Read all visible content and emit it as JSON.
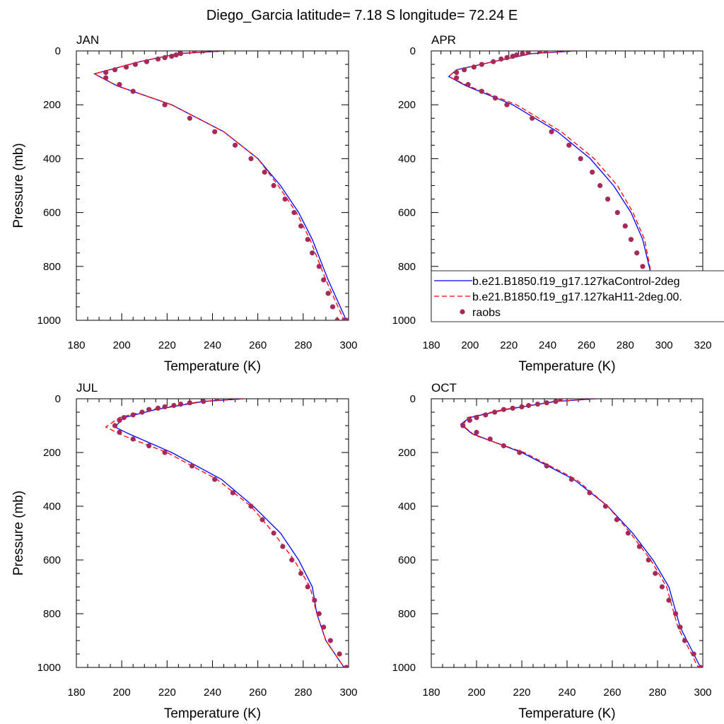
{
  "figure": {
    "title": "Diego_Garcia  latitude= 7.18 S longitude= 72.24 E"
  },
  "legend": {
    "location": "lower-right of APR panel",
    "entries": [
      {
        "label": "b.e21.B1850.f19_g17.127kaControl-2deg",
        "style": "solid",
        "color": "#0000ff"
      },
      {
        "label": "b.e21.B1850.f19_g17.127kaH11-2deg.00.",
        "style": "dashed",
        "color": "#ff0000"
      },
      {
        "label": "raobs",
        "style": "dot",
        "color": "#a52a5a"
      }
    ]
  },
  "colors": {
    "control": "#0000ff",
    "h11": "#ff0000",
    "raobs": "#a52a5a"
  },
  "chart_data": [
    {
      "type": "line",
      "title": "JAN",
      "xlabel": "Temperature (K)",
      "ylabel": "Pressure (mb)",
      "xlim": [
        180,
        300
      ],
      "ylim": [
        1000,
        0
      ],
      "xticks": [
        180,
        200,
        220,
        240,
        260,
        280,
        300
      ],
      "yticks": [
        0,
        200,
        400,
        600,
        800,
        1000
      ],
      "series": [
        {
          "key": "control",
          "x": [
            246,
            225,
            208,
            188,
            198,
            222,
            245,
            260,
            270,
            278,
            284,
            291,
            299
          ],
          "y": [
            0,
            10,
            40,
            85,
            130,
            200,
            300,
            400,
            500,
            600,
            700,
            850,
            1000
          ]
        },
        {
          "key": "h11",
          "x": [
            245,
            225,
            208,
            188,
            198,
            222,
            245,
            260,
            269,
            277,
            283,
            290,
            298
          ],
          "y": [
            0,
            10,
            40,
            85,
            130,
            200,
            300,
            400,
            500,
            600,
            700,
            850,
            1000
          ]
        },
        {
          "key": "raobs",
          "x": [
            236,
            232,
            226,
            224,
            222,
            219,
            216,
            211,
            206,
            202,
            197,
            193,
            193,
            199,
            205,
            219,
            230,
            241,
            250,
            257,
            263,
            267,
            272,
            276,
            279,
            282,
            284,
            287,
            289,
            291,
            293,
            295,
            298,
            299
          ],
          "y": [
            0,
            0,
            10,
            15,
            20,
            25,
            30,
            40,
            50,
            60,
            70,
            80,
            100,
            125,
            150,
            200,
            250,
            300,
            350,
            400,
            450,
            500,
            550,
            600,
            650,
            700,
            750,
            800,
            850,
            900,
            950,
            1000,
            1000,
            1000
          ]
        }
      ]
    },
    {
      "type": "line",
      "title": "APR",
      "xlabel": "Temperature (K)",
      "ylabel": "",
      "xlim": [
        180,
        320
      ],
      "ylim": [
        1000,
        0
      ],
      "xticks": [
        180,
        200,
        220,
        240,
        260,
        280,
        300,
        320
      ],
      "yticks": [
        0,
        200,
        400,
        600,
        800,
        1000
      ],
      "series": [
        {
          "key": "control",
          "x": [
            255,
            232,
            212,
            193,
            189,
            198,
            222,
            245,
            262,
            274,
            283,
            289,
            294,
            300
          ],
          "y": [
            0,
            10,
            40,
            70,
            95,
            130,
            200,
            300,
            400,
            500,
            600,
            700,
            850,
            1000
          ]
        },
        {
          "key": "h11",
          "x": [
            254,
            231,
            212,
            193,
            189,
            199,
            224,
            247,
            264,
            276,
            284,
            290,
            294,
            299
          ],
          "y": [
            0,
            10,
            40,
            70,
            95,
            130,
            200,
            300,
            400,
            500,
            600,
            700,
            850,
            1000
          ]
        },
        {
          "key": "raobs",
          "x": [
            239,
            236,
            230,
            227,
            224,
            222,
            219,
            216,
            212,
            206,
            202,
            197,
            193,
            193,
            199,
            206,
            213,
            219,
            232,
            242,
            251,
            257,
            263,
            267,
            271,
            276,
            280,
            283,
            286,
            289,
            291,
            293,
            296,
            300
          ],
          "y": [
            0,
            0,
            5,
            10,
            15,
            20,
            25,
            30,
            40,
            50,
            60,
            70,
            80,
            100,
            125,
            150,
            175,
            200,
            250,
            300,
            350,
            400,
            450,
            500,
            550,
            600,
            650,
            700,
            750,
            800,
            850,
            900,
            950,
            1000
          ]
        }
      ]
    },
    {
      "type": "line",
      "title": "JUL",
      "xlabel": "Temperature (K)",
      "ylabel": "Pressure (mb)",
      "xlim": [
        180,
        300
      ],
      "ylim": [
        1000,
        0
      ],
      "xticks": [
        180,
        200,
        220,
        240,
        260,
        280,
        300
      ],
      "yticks": [
        0,
        200,
        400,
        600,
        800,
        1000
      ],
      "series": [
        {
          "key": "control",
          "x": [
            254,
            236,
            215,
            201,
            197,
            203,
            222,
            244,
            258,
            270,
            278,
            284,
            286,
            290,
            298
          ],
          "y": [
            0,
            10,
            40,
            70,
            105,
            130,
            200,
            300,
            400,
            500,
            600,
            700,
            800,
            900,
            1000
          ]
        },
        {
          "key": "h11",
          "x": [
            254,
            235,
            213,
            199,
            193,
            200,
            220,
            242,
            257,
            267,
            276,
            283,
            286,
            290,
            298
          ],
          "y": [
            0,
            10,
            40,
            70,
            105,
            135,
            200,
            300,
            400,
            500,
            600,
            700,
            800,
            900,
            1000
          ]
        },
        {
          "key": "raobs",
          "x": [
            242,
            236,
            230,
            226,
            223,
            219,
            216,
            212,
            209,
            205,
            201,
            199,
            197,
            199,
            205,
            212,
            219,
            231,
            241,
            249,
            257,
            262,
            267,
            271,
            275,
            279,
            282,
            285,
            287,
            289,
            292,
            296,
            299
          ],
          "y": [
            0,
            10,
            15,
            20,
            25,
            30,
            35,
            40,
            50,
            60,
            70,
            80,
            100,
            125,
            150,
            175,
            200,
            250,
            300,
            350,
            400,
            450,
            500,
            550,
            600,
            650,
            700,
            750,
            800,
            850,
            900,
            950,
            1000
          ]
        }
      ]
    },
    {
      "type": "line",
      "title": "OCT",
      "xlabel": "Temperature (K)",
      "ylabel": "",
      "xlim": [
        180,
        300
      ],
      "ylim": [
        1000,
        0
      ],
      "xticks": [
        180,
        200,
        220,
        240,
        260,
        280,
        300
      ],
      "yticks": [
        0,
        200,
        400,
        600,
        800,
        1000
      ],
      "series": [
        {
          "key": "control",
          "x": [
            253,
            235,
            213,
            197,
            193,
            198,
            220,
            243,
            258,
            269,
            278,
            285,
            290,
            299
          ],
          "y": [
            0,
            10,
            40,
            70,
            95,
            130,
            200,
            300,
            400,
            500,
            600,
            700,
            850,
            1000
          ]
        },
        {
          "key": "h11",
          "x": [
            252,
            234,
            212,
            196,
            194,
            199,
            221,
            244,
            258,
            268,
            277,
            284,
            289,
            298
          ],
          "y": [
            0,
            10,
            40,
            70,
            100,
            135,
            200,
            300,
            400,
            500,
            600,
            700,
            850,
            1000
          ]
        },
        {
          "key": "raobs",
          "x": [
            237,
            235,
            231,
            227,
            223,
            220,
            216,
            212,
            208,
            204,
            200,
            197,
            194,
            200,
            206,
            212,
            219,
            231,
            242,
            250,
            257,
            262,
            267,
            272,
            276,
            279,
            282,
            285,
            288,
            290,
            292,
            296,
            299
          ],
          "y": [
            0,
            10,
            15,
            20,
            25,
            30,
            35,
            40,
            50,
            60,
            70,
            80,
            100,
            125,
            150,
            175,
            200,
            250,
            300,
            350,
            400,
            450,
            500,
            550,
            600,
            650,
            700,
            750,
            800,
            850,
            900,
            950,
            1000
          ]
        }
      ]
    }
  ]
}
